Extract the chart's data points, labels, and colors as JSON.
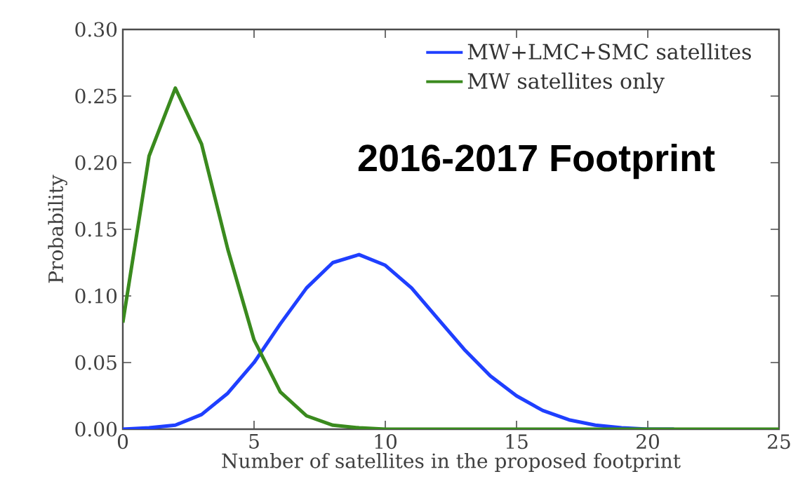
{
  "chart_data": {
    "type": "line",
    "xlabel": "Number of satellites in the proposed footprint",
    "ylabel": "Probability",
    "x": [
      0,
      1,
      2,
      3,
      4,
      5,
      6,
      7,
      8,
      9,
      10,
      11,
      12,
      13,
      14,
      15,
      16,
      17,
      18,
      19,
      20,
      21,
      22,
      23,
      24,
      25
    ],
    "series": [
      {
        "name": "MW+LMC+SMC satellites",
        "color": "#1f3fff",
        "values": [
          0,
          0.001,
          0.003,
          0.011,
          0.027,
          0.05,
          0.079,
          0.106,
          0.125,
          0.131,
          0.123,
          0.106,
          0.083,
          0.06,
          0.04,
          0.025,
          0.014,
          0.007,
          0.003,
          0.001,
          0,
          0,
          null,
          null,
          null,
          null
        ]
      },
      {
        "name": "MW satellites only",
        "color": "#3a8a1e",
        "values": [
          0.08,
          0.205,
          0.256,
          0.214,
          0.135,
          0.067,
          0.028,
          0.01,
          0.003,
          0.001,
          0,
          0,
          0,
          0,
          0,
          0,
          0,
          0,
          0,
          0,
          0,
          0,
          0,
          0,
          0,
          0
        ]
      }
    ],
    "xlim": [
      0,
      25
    ],
    "ylim": [
      0,
      0.3
    ],
    "xticks": [
      0,
      5,
      10,
      15,
      20,
      25
    ],
    "yticks": [
      {
        "value": 0,
        "label": "0.00"
      },
      {
        "value": 0.05,
        "label": "0.05"
      },
      {
        "value": 0.1,
        "label": "0.10"
      },
      {
        "value": 0.15,
        "label": "0.15"
      },
      {
        "value": 0.2,
        "label": "0.20"
      },
      {
        "value": 0.25,
        "label": "0.25"
      },
      {
        "value": 0.3,
        "label": "0.30"
      }
    ],
    "annotations": [
      "2016-2017 Footprint"
    ],
    "legend": "top right",
    "grid": false,
    "line_style": "solid",
    "marker": "none"
  }
}
